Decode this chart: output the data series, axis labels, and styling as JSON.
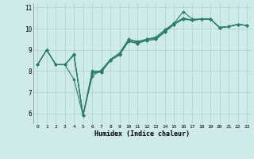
{
  "title": "",
  "xlabel": "Humidex (Indice chaleur)",
  "background_color": "#ceeaea",
  "grid_color": "#b0d4d4",
  "line_color": "#2d7d6e",
  "marker_color": "#2d7d6e",
  "xlim": [
    -0.5,
    23.5
  ],
  "ylim": [
    5.5,
    11.2
  ],
  "xticks": [
    0,
    1,
    2,
    3,
    4,
    5,
    6,
    7,
    8,
    9,
    10,
    11,
    12,
    13,
    14,
    15,
    16,
    17,
    18,
    19,
    20,
    21,
    22,
    23
  ],
  "yticks": [
    6,
    7,
    8,
    9,
    10,
    11
  ],
  "series": [
    [
      8.3,
      9.0,
      8.3,
      8.3,
      8.8,
      5.9,
      7.75,
      8.05,
      8.55,
      8.85,
      9.5,
      9.4,
      9.5,
      9.6,
      9.95,
      10.25,
      10.8,
      10.45,
      10.45,
      10.45,
      10.05,
      10.1,
      10.2,
      10.15
    ],
    [
      8.3,
      9.0,
      8.3,
      8.3,
      8.75,
      5.9,
      8.0,
      8.0,
      8.5,
      8.8,
      9.45,
      9.35,
      9.5,
      9.55,
      9.9,
      10.25,
      10.5,
      10.4,
      10.45,
      10.45,
      10.05,
      10.1,
      10.2,
      10.15
    ],
    [
      8.3,
      9.0,
      8.3,
      8.3,
      8.75,
      5.9,
      7.95,
      7.95,
      8.5,
      8.75,
      9.4,
      9.3,
      9.45,
      9.5,
      9.85,
      10.2,
      10.45,
      10.4,
      10.45,
      10.45,
      10.05,
      10.1,
      10.2,
      10.15
    ],
    [
      8.3,
      9.0,
      8.3,
      8.3,
      7.6,
      5.9,
      7.9,
      7.95,
      8.5,
      8.8,
      9.4,
      9.3,
      9.45,
      9.5,
      9.85,
      10.2,
      10.45,
      10.4,
      10.45,
      10.45,
      10.05,
      10.1,
      10.2,
      10.15
    ]
  ]
}
